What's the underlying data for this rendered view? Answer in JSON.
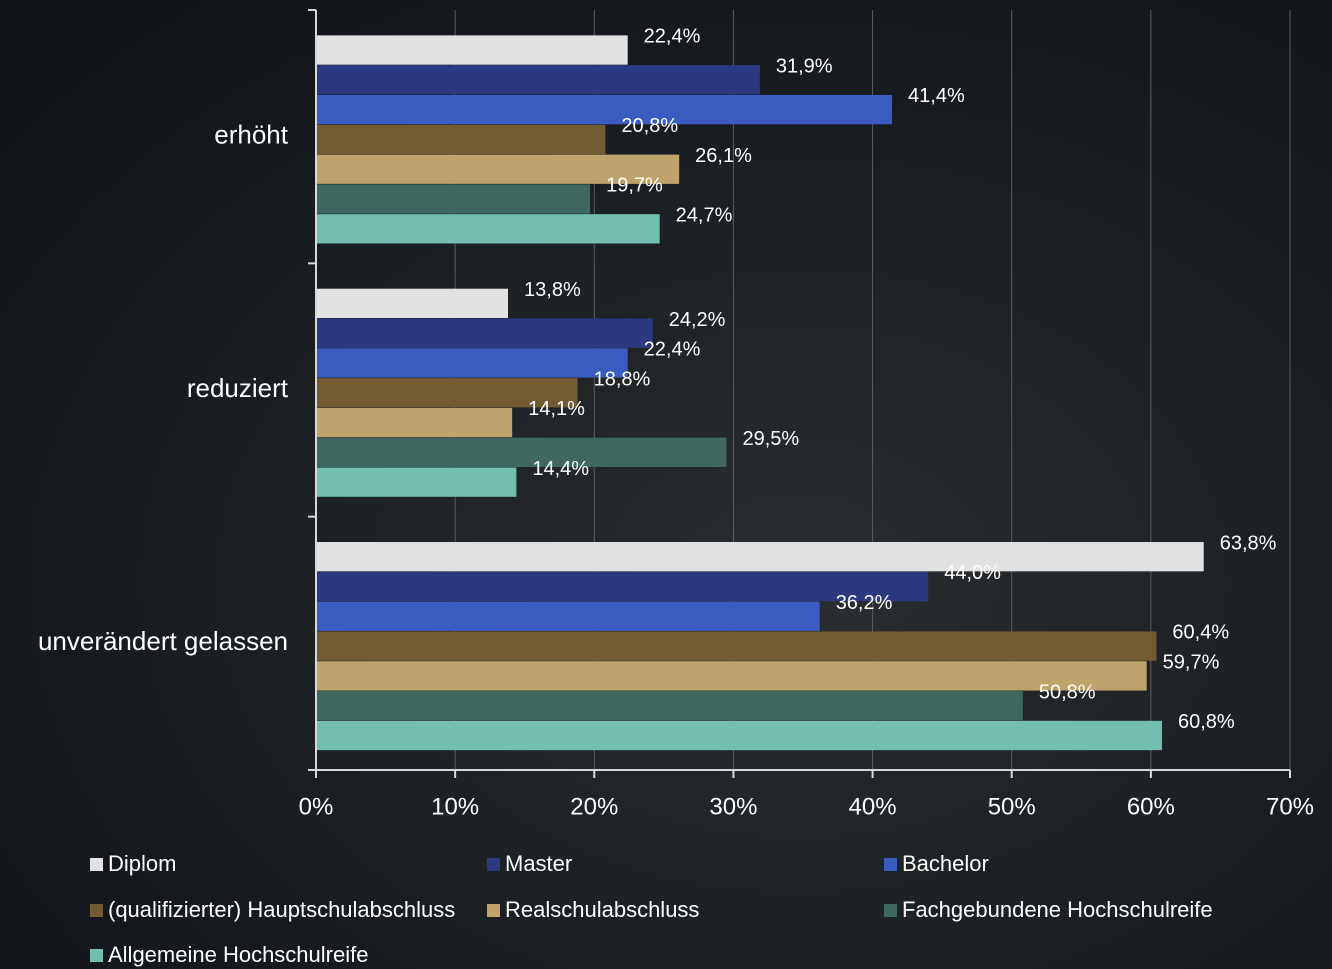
{
  "chart_data": {
    "type": "hbar",
    "categories": [
      "erhöht",
      "reduziert",
      "unverändert gelassen"
    ],
    "series": [
      {
        "name": "Diplom",
        "color": "#e2e2e2",
        "values": [
          22.4,
          13.8,
          63.8
        ],
        "value_labels": [
          "22,4%",
          "13,8%",
          "63,8%"
        ]
      },
      {
        "name": "Master",
        "color": "#2b3a80",
        "values": [
          31.9,
          24.2,
          44.0
        ],
        "value_labels": [
          "31,9%",
          "24,2%",
          "44,0%"
        ]
      },
      {
        "name": "Bachelor",
        "color": "#3a5bbf",
        "values": [
          41.4,
          22.4,
          36.2
        ],
        "value_labels": [
          "41,4%",
          "22,4%",
          "36,2%"
        ]
      },
      {
        "name": "(qualifizierter) Hauptschulabschluss",
        "color": "#735a32",
        "values": [
          20.8,
          18.8,
          60.4
        ],
        "value_labels": [
          "20,8%",
          "18,8%",
          "60,4%"
        ]
      },
      {
        "name": "Realschulabschluss",
        "color": "#c0a36c",
        "values": [
          26.1,
          14.1,
          59.7
        ],
        "value_labels": [
          "26,1%",
          "14,1%",
          "59,7%"
        ]
      },
      {
        "name": "Fachgebundene Hochschulreife",
        "color": "#3d675f",
        "values": [
          19.7,
          29.5,
          50.8
        ],
        "value_labels": [
          "19,7%",
          "29,5%",
          "50,8%"
        ]
      },
      {
        "name": "Allgemeine Hochschulreife",
        "color": "#72bfb0",
        "values": [
          24.7,
          14.4,
          60.8
        ],
        "value_labels": [
          "24,7%",
          "14,4%",
          "60,8%"
        ]
      }
    ],
    "xlim": [
      0,
      70
    ],
    "xticks": [
      {
        "value": 0,
        "label": "0%"
      },
      {
        "value": 10,
        "label": "10%"
      },
      {
        "value": 20,
        "label": "20%"
      },
      {
        "value": 30,
        "label": "30%"
      },
      {
        "value": 40,
        "label": "40%"
      },
      {
        "value": 50,
        "label": "50%"
      },
      {
        "value": 60,
        "label": "60%"
      },
      {
        "value": 70,
        "label": "70%"
      }
    ],
    "grid": true,
    "legend": "bottom"
  }
}
